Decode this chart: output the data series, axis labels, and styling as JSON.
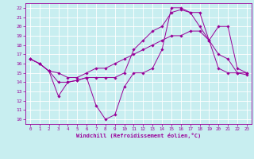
{
  "xlabel": "Windchill (Refroidissement éolien,°C)",
  "xlim": [
    -0.5,
    23.5
  ],
  "ylim": [
    9.5,
    22.5
  ],
  "xticks": [
    0,
    1,
    2,
    3,
    4,
    5,
    6,
    7,
    8,
    9,
    10,
    11,
    12,
    13,
    14,
    15,
    16,
    17,
    18,
    19,
    20,
    21,
    22,
    23
  ],
  "yticks": [
    10,
    11,
    12,
    13,
    14,
    15,
    16,
    17,
    18,
    19,
    20,
    21,
    22
  ],
  "bg_color": "#c8eef0",
  "line_color": "#990099",
  "grid_color": "#ffffff",
  "line1_x": [
    0,
    1,
    2,
    3,
    4,
    5,
    6,
    7,
    8,
    9,
    10,
    11,
    12,
    13,
    14,
    15,
    16,
    17,
    18,
    19,
    20,
    21,
    22,
    23
  ],
  "line1_y": [
    16.5,
    16.0,
    15.2,
    12.5,
    14.0,
    14.2,
    14.5,
    11.5,
    10.0,
    10.5,
    13.5,
    15.0,
    15.0,
    15.5,
    17.5,
    22.0,
    22.0,
    21.5,
    21.5,
    18.5,
    15.5,
    15.0,
    15.0,
    14.8
  ],
  "line2_x": [
    0,
    1,
    2,
    3,
    4,
    5,
    6,
    7,
    8,
    9,
    10,
    11,
    12,
    13,
    14,
    15,
    16,
    17,
    18,
    19,
    20,
    21,
    22,
    23
  ],
  "line2_y": [
    16.5,
    16.0,
    15.2,
    14.0,
    14.0,
    14.2,
    14.5,
    14.5,
    14.5,
    14.5,
    15.0,
    17.5,
    18.5,
    19.5,
    20.0,
    21.5,
    21.8,
    21.5,
    20.0,
    18.5,
    20.0,
    20.0,
    15.5,
    15.0
  ],
  "line3_x": [
    0,
    1,
    2,
    3,
    4,
    5,
    6,
    7,
    8,
    9,
    10,
    11,
    12,
    13,
    14,
    15,
    16,
    17,
    18,
    19,
    20,
    21,
    22,
    23
  ],
  "line3_y": [
    16.5,
    16.0,
    15.2,
    15.0,
    14.5,
    14.5,
    15.0,
    15.5,
    15.5,
    16.0,
    16.5,
    17.0,
    17.5,
    18.0,
    18.5,
    19.0,
    19.0,
    19.5,
    19.5,
    18.5,
    17.0,
    16.5,
    15.0,
    15.0
  ]
}
